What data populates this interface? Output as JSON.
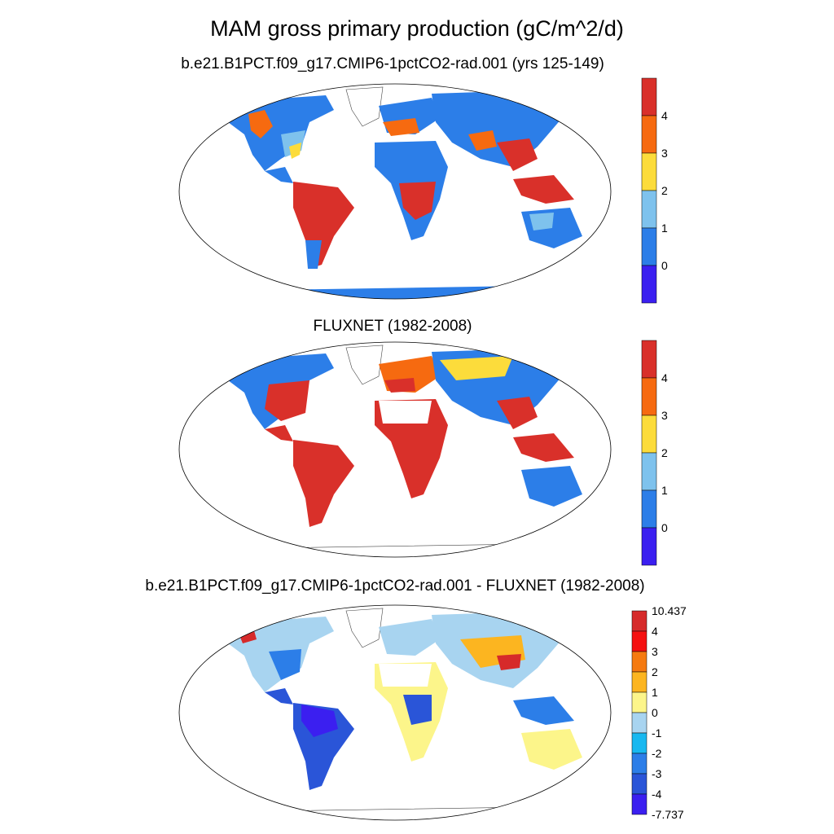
{
  "title": "MAM gross primary production (gC/m^2/d)",
  "panels": [
    {
      "title": "b.e21.B1PCT.f09_g17.CMIP6-1pctCO2-rad.001 (yrs 125-149)",
      "colorbar": {
        "tick_labels": [
          "4",
          "3",
          "2",
          "1",
          "0"
        ],
        "bin_colors": [
          "#d9302a",
          "#f66a10",
          "#fcdc3b",
          "#7ec2ed",
          "#2c7ee8",
          "#3b1ff0"
        ]
      }
    },
    {
      "title": "FLUXNET (1982-2008)",
      "colorbar": {
        "tick_labels": [
          "4",
          "3",
          "2",
          "1",
          "0"
        ],
        "bin_colors": [
          "#d9302a",
          "#f66a10",
          "#fcdc3b",
          "#7ec2ed",
          "#2c7ee8",
          "#3b1ff0"
        ]
      }
    },
    {
      "title": "b.e21.B1PCT.f09_g17.CMIP6-1pctCO2-rad.001 - FLUXNET (1982-2008)",
      "colorbar": {
        "tick_labels": [
          "10.437",
          "4",
          "3",
          "2",
          "1",
          "0",
          "-1",
          "-2",
          "-3",
          "-4",
          "-7.737"
        ],
        "bin_colors": [
          "#d62a2a",
          "#f51010",
          "#f57a10",
          "#fcb520",
          "#fcf58a",
          "#a8d4f0",
          "#18b8f0",
          "#2c7ee8",
          "#2a55d8",
          "#3b1ff0"
        ]
      }
    }
  ],
  "colors": {
    "land_high": "#d9302a",
    "land_mid": "#f66a10",
    "land_low": "#2c7ee8",
    "diff_negative": "#2a55d8",
    "diff_positive": "#fcf58a"
  }
}
